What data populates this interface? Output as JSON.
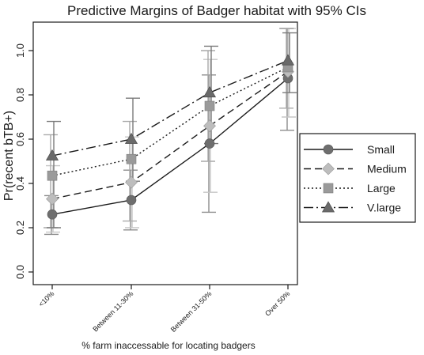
{
  "chart_data": {
    "type": "line",
    "title": "Predictive Margins of Badger habitat with 95% CIs",
    "xlabel": "% farm inaccessable for locating badgers",
    "ylabel": "Pr(recent bTB+)",
    "categories": [
      "<10%",
      "Between 11-30%",
      "Between 31-50%",
      "Over 50%"
    ],
    "ylim": [
      0,
      1.1
    ],
    "yticks": [
      "0.0",
      "0.2",
      "0.4",
      "0.6",
      "0.8",
      "1.0"
    ],
    "ytick_values": [
      0,
      0.2,
      0.4,
      0.6,
      0.8,
      1.0
    ],
    "grid": false,
    "legend_placement": "right",
    "series": [
      {
        "name": "Small",
        "marker": "circle",
        "dash": "solid",
        "color": "#6e6e6e",
        "values": [
          0.26,
          0.325,
          0.58,
          0.875
        ],
        "ci_low": [
          0.17,
          0.19,
          0.27,
          0.64
        ],
        "ci_high": [
          0.345,
          0.46,
          0.89,
          1.1
        ]
      },
      {
        "name": "Medium",
        "marker": "diamond",
        "dash": "dashed",
        "color": "#bdbdbd",
        "values": [
          0.33,
          0.405,
          0.66,
          0.905
        ],
        "ci_low": [
          0.18,
          0.2,
          0.36,
          0.7
        ],
        "ci_high": [
          0.48,
          0.61,
          0.96,
          1.1
        ]
      },
      {
        "name": "Large",
        "marker": "square",
        "dash": "dotted",
        "color": "#9a9a9a",
        "values": [
          0.435,
          0.51,
          0.75,
          0.925
        ],
        "ci_low": [
          0.2,
          0.23,
          0.5,
          0.74
        ],
        "ci_high": [
          0.62,
          0.68,
          1.0,
          1.1
        ]
      },
      {
        "name": "V.large",
        "marker": "triangle",
        "dash": "dashdot",
        "color": "#6a6a6a",
        "values": [
          0.525,
          0.6,
          0.81,
          0.955
        ],
        "ci_low": [
          0.2,
          0.41,
          0.58,
          0.81
        ],
        "ci_high": [
          0.68,
          0.785,
          1.02,
          1.08
        ]
      }
    ]
  }
}
